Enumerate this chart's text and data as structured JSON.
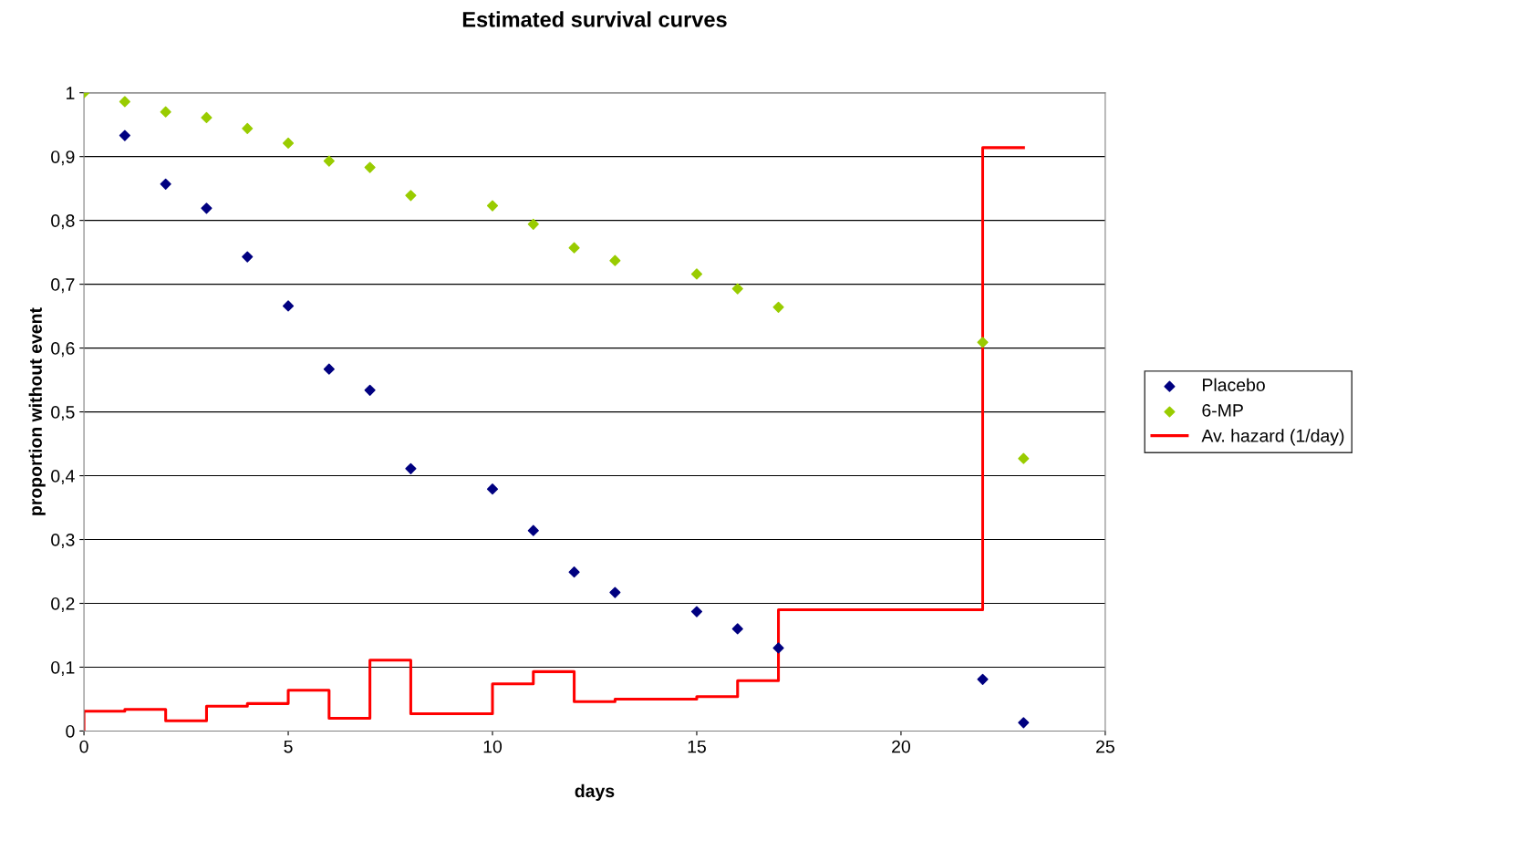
{
  "chart_data": {
    "type": "scatter",
    "title": "Estimated survival curves",
    "xlabel": "days",
    "ylabel": "proportion without event",
    "xlim": [
      0,
      25
    ],
    "xticks": [
      0,
      5,
      10,
      15,
      20,
      25
    ],
    "ylim": [
      0,
      1
    ],
    "yticks": [
      0,
      {
        "value": 0.1,
        "label": "0,1"
      },
      {
        "value": 0.2,
        "label": "0,2"
      },
      {
        "value": 0.3,
        "label": "0,3"
      },
      {
        "value": 0.4,
        "label": "0,4"
      },
      {
        "value": 0.5,
        "label": "0,5"
      },
      {
        "value": 0.6,
        "label": "0,6"
      },
      {
        "value": 0.7,
        "label": "0,7"
      },
      {
        "value": 0.8,
        "label": "0,8"
      },
      {
        "value": 0.9,
        "label": "0,9"
      },
      1
    ],
    "grid": "y",
    "legend": "right",
    "series": [
      {
        "name": "Placebo",
        "color": "#000080",
        "marker": "diamond",
        "x": [
          1,
          2,
          3,
          4,
          5,
          6,
          7,
          8,
          10,
          11,
          12,
          13,
          15,
          16,
          17,
          22,
          23
        ],
        "values": [
          0.933,
          0.857,
          0.819,
          0.743,
          0.666,
          0.567,
          0.534,
          0.411,
          0.379,
          0.314,
          0.249,
          0.217,
          0.187,
          0.16,
          0.13,
          0.081,
          0.013
        ]
      },
      {
        "name": "6-MP",
        "color": "#99cc00",
        "marker": "diamond",
        "x": [
          0,
          1,
          2,
          3,
          4,
          5,
          6,
          7,
          8,
          10,
          11,
          12,
          13,
          15,
          16,
          17,
          22,
          23
        ],
        "values": [
          1,
          0.986,
          0.97,
          0.961,
          0.944,
          0.921,
          0.893,
          0.883,
          0.839,
          0.823,
          0.794,
          0.757,
          0.737,
          0.716,
          0.693,
          0.664,
          0.609,
          0.427
        ]
      },
      {
        "name": "Av. hazard (1/day)",
        "type": "step",
        "color": "#ff0000",
        "marker": "none",
        "x": [
          0,
          0,
          1,
          2,
          3,
          4,
          5,
          6,
          7,
          8,
          10,
          11,
          12,
          13,
          15,
          16,
          17,
          22,
          23
        ],
        "values": [
          0,
          0.031,
          0.034,
          0.016,
          0.039,
          0.043,
          0.064,
          0.02,
          0.111,
          0.027,
          0.074,
          0.093,
          0.046,
          0.05,
          0.054,
          0.079,
          0.19,
          0.914,
          0.914
        ]
      }
    ]
  }
}
